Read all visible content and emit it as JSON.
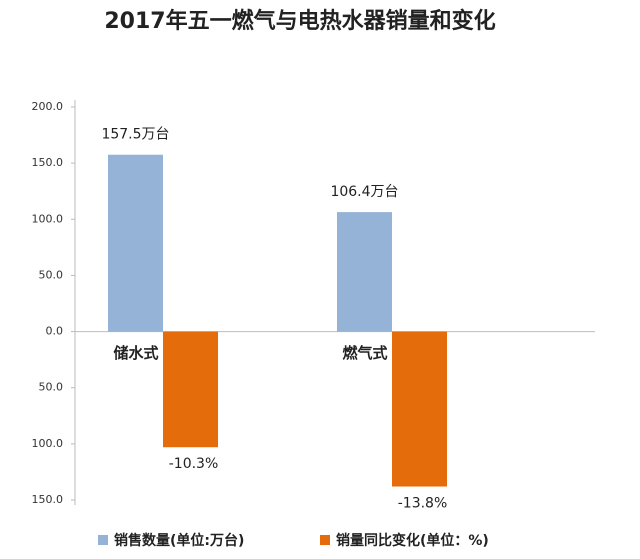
{
  "chart_data": {
    "type": "bar",
    "title": "2017年五一燃气与电热水器销量和变化",
    "categories": [
      "储水式",
      "燃气式"
    ],
    "series": [
      {
        "name": "销售数量(单位:万台)",
        "color": "#95b3d7",
        "values": [
          157.5,
          106.4
        ],
        "value_labels": [
          "157.5万台",
          "106.4万台"
        ]
      },
      {
        "name": "销量同比变化(单位：%)",
        "color": "#e46c0a",
        "axis": "y2",
        "values": [
          -10.3,
          -13.8
        ],
        "value_labels": [
          "-10.3%",
          "-13.8%"
        ]
      }
    ],
    "ylim": [
      -150,
      200
    ],
    "yticks": [
      {
        "value": 200,
        "label": "200.0"
      },
      {
        "value": 150,
        "label": "150.0"
      },
      {
        "value": 100,
        "label": "100.0"
      },
      {
        "value": 50,
        "label": "50.0"
      },
      {
        "value": 0,
        "label": "0.0"
      },
      {
        "value": -50,
        "label": "50.0"
      },
      {
        "value": -100,
        "label": "100.0"
      },
      {
        "value": -150,
        "label": "150.0"
      }
    ],
    "y2lim": [
      -15,
      20
    ],
    "legend": "bottom"
  }
}
